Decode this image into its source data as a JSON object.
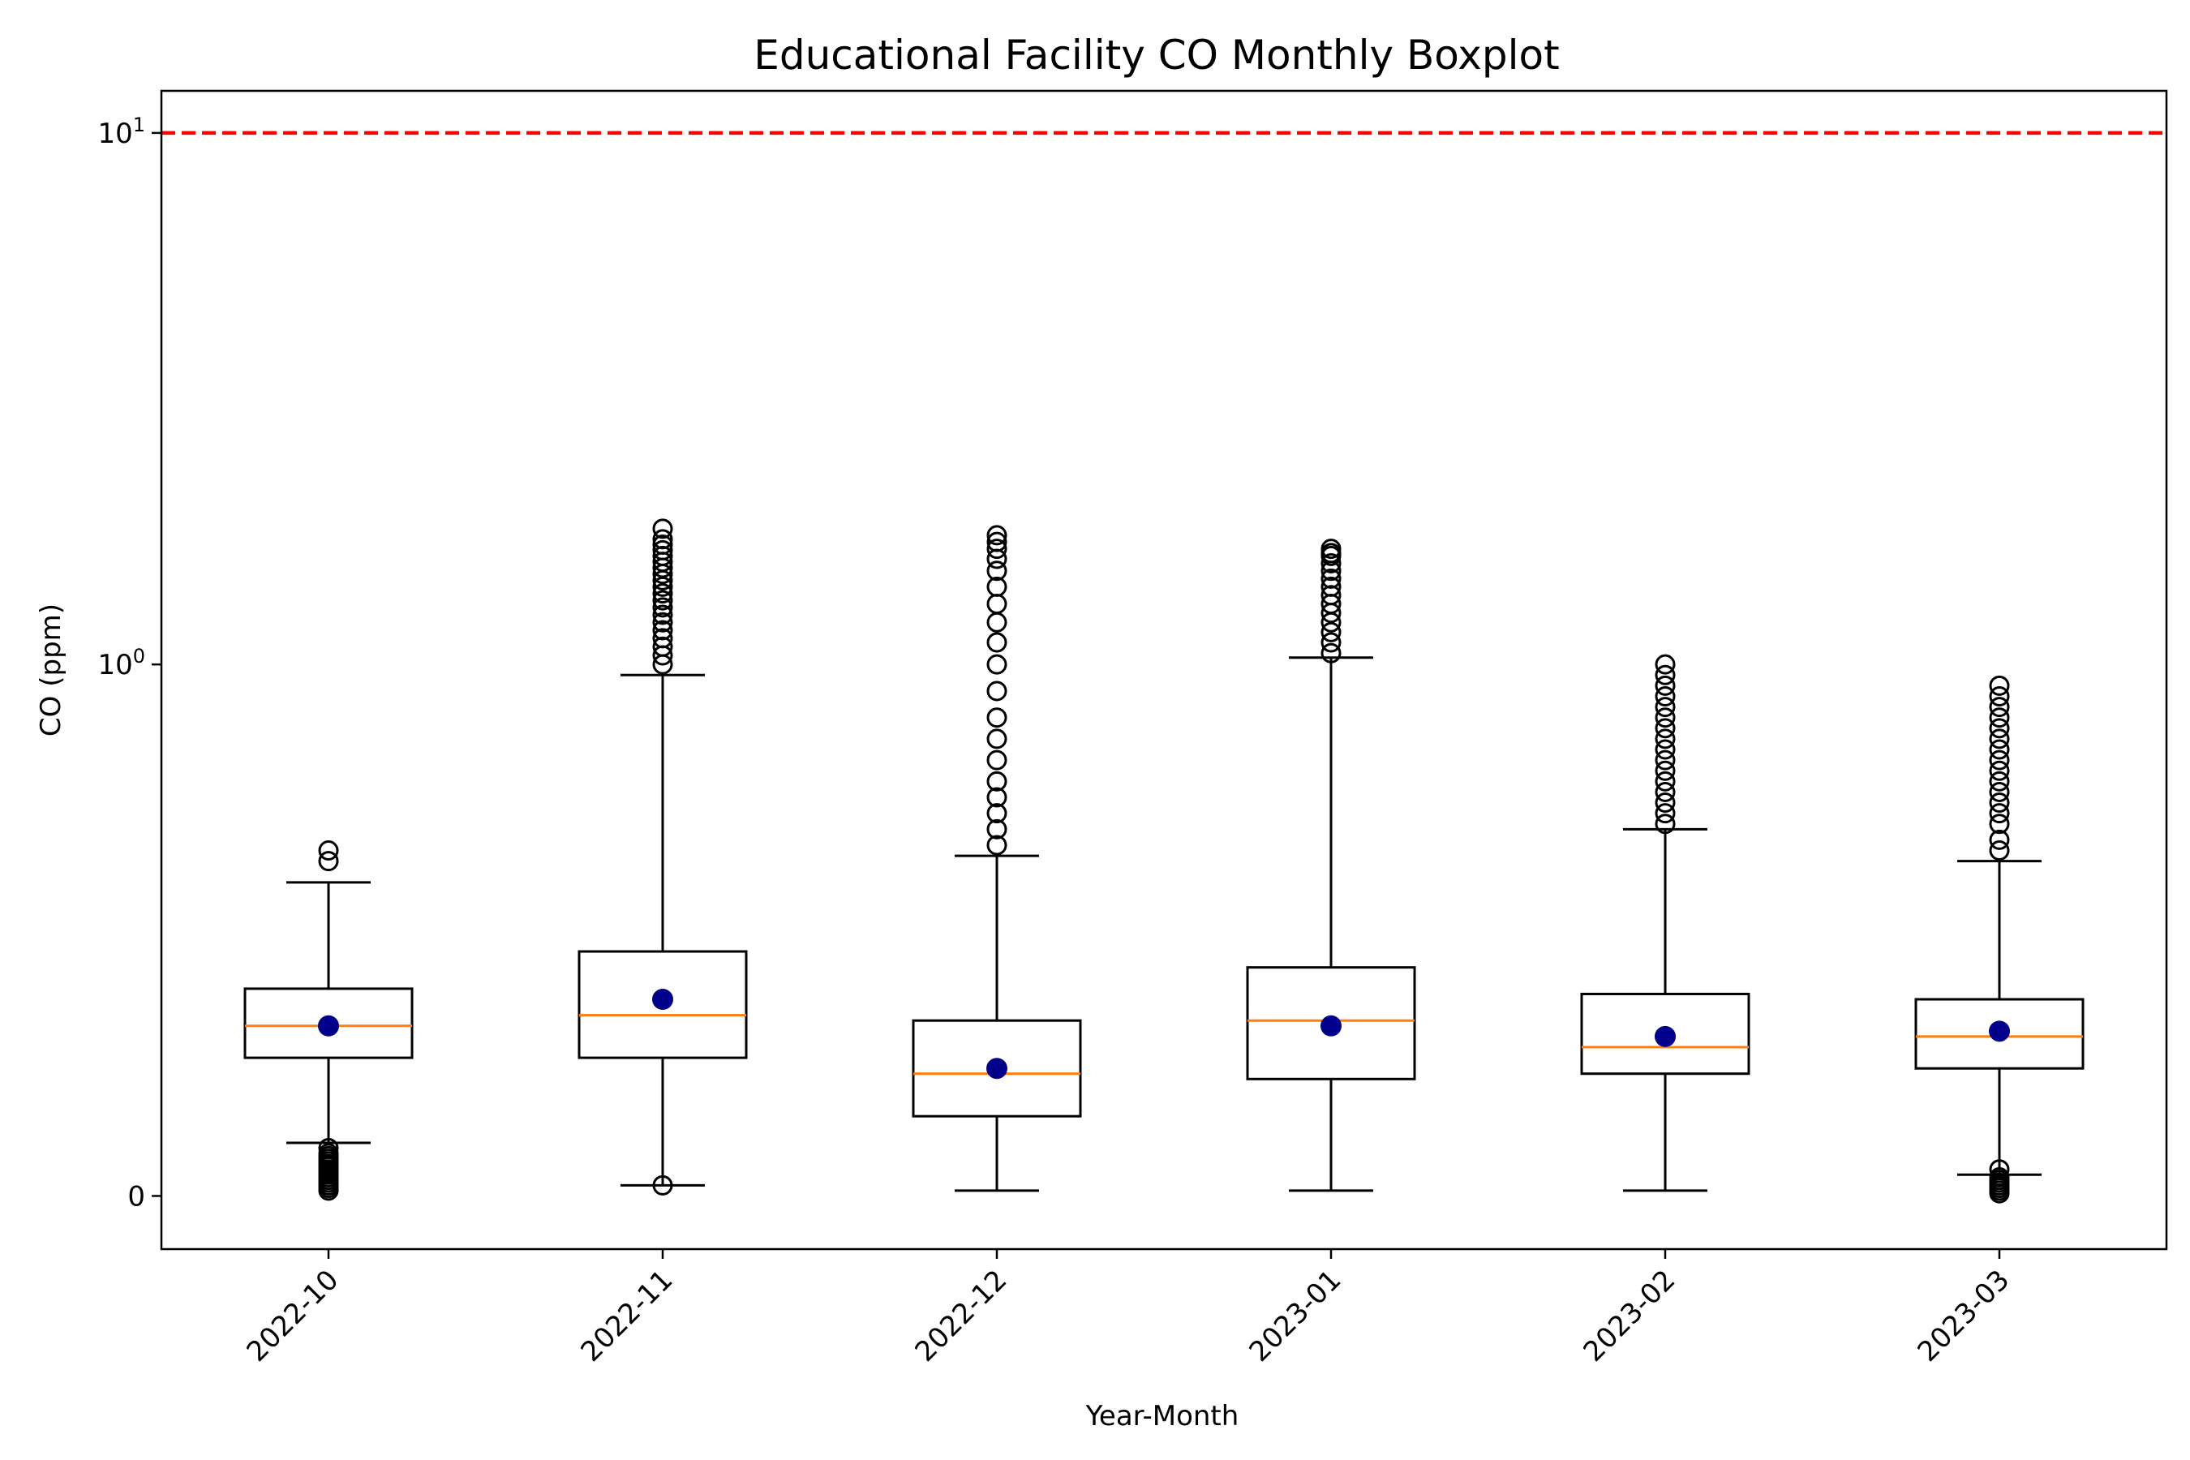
{
  "chart_data": {
    "type": "boxplot",
    "title": "Educational Facility CO Monthly Boxplot",
    "xlabel": "Year-Month",
    "ylabel": "CO (ppm)",
    "yscale": "symlog",
    "ylim": [
      -0.1,
      12
    ],
    "yticks": [
      {
        "value": 0,
        "label": "0",
        "sup": ""
      },
      {
        "value": 1,
        "label": "10",
        "sup": "0"
      },
      {
        "value": 10,
        "label": "10",
        "sup": "1"
      }
    ],
    "threshold": {
      "value": 10,
      "color": "#ff0000",
      "style": "dashed"
    },
    "grid": false,
    "colors": {
      "box": "#000000",
      "median": "#ff7f0e",
      "mean": "#00008b",
      "frame": "#000000"
    },
    "categories": [
      "2022-10",
      "2022-11",
      "2022-12",
      "2023-01",
      "2023-02",
      "2023-03"
    ],
    "boxes": [
      {
        "category": "2022-10",
        "whisker_low": 0.1,
        "q1": 0.26,
        "median": 0.32,
        "q3": 0.39,
        "whisker_high": 0.59,
        "mean": 0.32,
        "outliers": [
          0.01,
          0.015,
          0.02,
          0.025,
          0.03,
          0.035,
          0.04,
          0.045,
          0.05,
          0.055,
          0.06,
          0.065,
          0.07,
          0.075,
          0.08,
          0.09,
          0.63,
          0.65
        ]
      },
      {
        "category": "2022-11",
        "whisker_low": 0.02,
        "q1": 0.26,
        "median": 0.34,
        "q3": 0.46,
        "whisker_high": 0.98,
        "mean": 0.37,
        "outliers": [
          0.02,
          1.0,
          1.04,
          1.08,
          1.12,
          1.16,
          1.2,
          1.24,
          1.28,
          1.32,
          1.36,
          1.4,
          1.44,
          1.48,
          1.52,
          1.56,
          1.6,
          1.64,
          1.68,
          1.72,
          1.8
        ]
      },
      {
        "category": "2022-12",
        "whisker_low": 0.01,
        "q1": 0.15,
        "median": 0.23,
        "q3": 0.33,
        "whisker_high": 0.64,
        "mean": 0.24,
        "outliers": [
          0.66,
          0.69,
          0.72,
          0.75,
          0.78,
          0.82,
          0.86,
          0.9,
          0.95,
          1.0,
          1.1,
          1.2,
          1.3,
          1.4,
          1.5,
          1.58,
          1.65,
          1.7,
          1.75
        ]
      },
      {
        "category": "2023-01",
        "whisker_low": 0.01,
        "q1": 0.22,
        "median": 0.33,
        "q3": 0.43,
        "whisker_high": 1.03,
        "mean": 0.32,
        "outliers": [
          1.05,
          1.1,
          1.15,
          1.2,
          1.25,
          1.3,
          1.35,
          1.4,
          1.45,
          1.5,
          1.55,
          1.6,
          1.62,
          1.65
        ]
      },
      {
        "category": "2023-02",
        "whisker_low": 0.01,
        "q1": 0.23,
        "median": 0.28,
        "q3": 0.38,
        "whisker_high": 0.69,
        "mean": 0.3,
        "outliers": [
          0.7,
          0.72,
          0.74,
          0.76,
          0.78,
          0.8,
          0.82,
          0.84,
          0.86,
          0.88,
          0.9,
          0.92,
          0.94,
          0.96,
          0.98,
          1.0
        ]
      },
      {
        "category": "2023-03",
        "whisker_low": 0.04,
        "q1": 0.24,
        "median": 0.3,
        "q3": 0.37,
        "whisker_high": 0.63,
        "mean": 0.31,
        "outliers": [
          0.005,
          0.01,
          0.015,
          0.02,
          0.025,
          0.03,
          0.035,
          0.05,
          0.65,
          0.67,
          0.7,
          0.72,
          0.74,
          0.76,
          0.78,
          0.8,
          0.82,
          0.84,
          0.86,
          0.88,
          0.9,
          0.92,
          0.94,
          0.96
        ]
      }
    ]
  }
}
